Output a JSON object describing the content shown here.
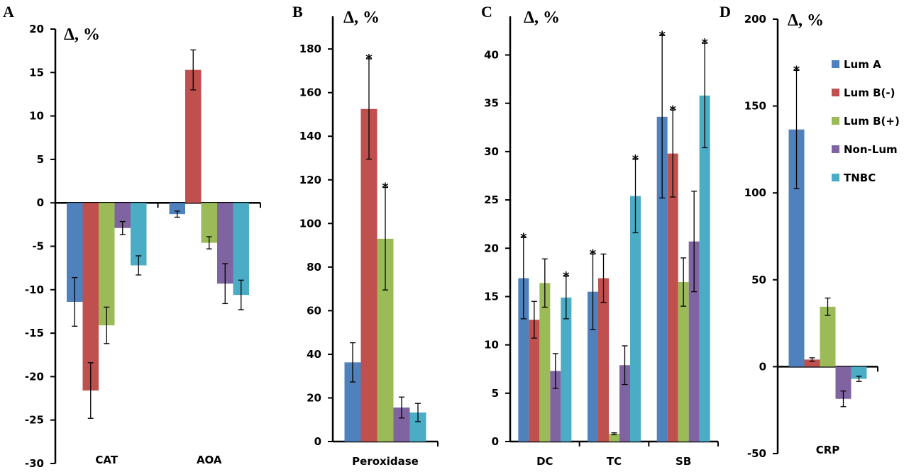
{
  "legend": [
    {
      "name": "Lum A",
      "color": "#4F81BD"
    },
    {
      "name": "Lum B(-)",
      "color": "#C0504D"
    },
    {
      "name": "Lum B(+)",
      "color": "#9BBB59"
    },
    {
      "name": "Non-Lum",
      "color": "#8064A2"
    },
    {
      "name": "TNBC",
      "color": "#4BACC6"
    }
  ],
  "chart_data": [
    {
      "type": "bar",
      "panel": "A",
      "ylabel": "Δ, %",
      "ylim": [
        -30,
        20
      ],
      "yticks": [
        20,
        15,
        10,
        5,
        0,
        -5,
        -10,
        -15,
        -20,
        -25,
        -30
      ],
      "categories": [
        "CAT",
        "AOA"
      ],
      "series": [
        {
          "name": "Lum A",
          "values": [
            -11.4,
            -1.3
          ],
          "errors": [
            2.8,
            0.35
          ],
          "significant": [
            false,
            false
          ]
        },
        {
          "name": "Lum B(-)",
          "values": [
            -21.6,
            15.3
          ],
          "errors": [
            3.2,
            2.3
          ],
          "significant": [
            false,
            false
          ]
        },
        {
          "name": "Lum B(+)",
          "values": [
            -14.1,
            -4.6
          ],
          "errors": [
            2.1,
            0.7
          ],
          "significant": [
            false,
            false
          ]
        },
        {
          "name": "Non-Lum",
          "values": [
            -2.9,
            -9.3
          ],
          "errors": [
            0.75,
            2.3
          ],
          "significant": [
            false,
            false
          ]
        },
        {
          "name": "TNBC",
          "values": [
            -7.2,
            -10.6
          ],
          "errors": [
            1.1,
            1.7
          ],
          "significant": [
            false,
            false
          ]
        }
      ]
    },
    {
      "type": "bar",
      "panel": "B",
      "ylabel": "Δ, %",
      "ylim": [
        0,
        195
      ],
      "yticks": [
        180,
        160,
        140,
        120,
        100,
        80,
        60,
        40,
        20,
        0
      ],
      "categories": [
        "Peroxidase"
      ],
      "series": [
        {
          "name": "Lum A",
          "values": [
            36.3
          ],
          "errors": [
            9.0
          ],
          "significant": [
            false
          ]
        },
        {
          "name": "Lum B(-)",
          "values": [
            152.5
          ],
          "errors": [
            23.0
          ],
          "significant": [
            true
          ]
        },
        {
          "name": "Lum B(+)",
          "values": [
            93.0
          ],
          "errors": [
            23.5
          ],
          "significant": [
            true
          ]
        },
        {
          "name": "Non-Lum",
          "values": [
            15.6
          ],
          "errors": [
            4.8
          ],
          "significant": [
            false
          ]
        },
        {
          "name": "TNBC",
          "values": [
            13.3
          ],
          "errors": [
            4.2
          ],
          "significant": [
            false
          ]
        }
      ]
    },
    {
      "type": "bar",
      "panel": "C",
      "ylabel": "Δ, %",
      "ylim": [
        0,
        44
      ],
      "yticks": [
        40,
        35,
        30,
        25,
        20,
        15,
        10,
        5,
        0
      ],
      "categories": [
        "DC",
        "TC",
        "SB"
      ],
      "series": [
        {
          "name": "Lum A",
          "values": [
            16.9,
            15.5,
            33.6
          ],
          "errors": [
            4.2,
            3.9,
            8.4
          ],
          "significant": [
            true,
            true,
            true
          ]
        },
        {
          "name": "Lum B(-)",
          "values": [
            12.6,
            16.9,
            29.8
          ],
          "errors": [
            1.9,
            2.5,
            4.5
          ],
          "significant": [
            false,
            false,
            true
          ]
        },
        {
          "name": "Lum B(+)",
          "values": [
            16.4,
            0.8,
            16.5
          ],
          "errors": [
            2.5,
            0.1,
            2.5
          ],
          "significant": [
            false,
            false,
            false
          ]
        },
        {
          "name": "Non-Lum",
          "values": [
            7.3,
            7.9,
            20.7
          ],
          "errors": [
            1.8,
            2.0,
            5.2
          ],
          "significant": [
            false,
            false,
            false
          ]
        },
        {
          "name": "TNBC",
          "values": [
            14.9,
            25.4,
            35.8
          ],
          "errors": [
            2.2,
            3.8,
            5.4
          ],
          "significant": [
            true,
            true,
            true
          ]
        }
      ]
    },
    {
      "type": "bar",
      "panel": "D",
      "ylabel": "Δ, %",
      "ylim": [
        -50,
        200
      ],
      "yticks": [
        200,
        150,
        100,
        50,
        0,
        -50
      ],
      "categories": [
        "CRP"
      ],
      "series": [
        {
          "name": "Lum A",
          "values": [
            136.5
          ],
          "errors": [
            34.0
          ],
          "significant": [
            true
          ]
        },
        {
          "name": "Lum B(-)",
          "values": [
            4.1
          ],
          "errors": [
            1.0
          ],
          "significant": [
            false
          ]
        },
        {
          "name": "Lum B(+)",
          "values": [
            34.5
          ],
          "errors": [
            5.0
          ],
          "significant": [
            false
          ]
        },
        {
          "name": "Non-Lum",
          "values": [
            -18.5
          ],
          "errors": [
            4.5
          ],
          "significant": [
            false
          ]
        },
        {
          "name": "TNBC",
          "values": [
            -7.0
          ],
          "errors": [
            1.5
          ],
          "significant": [
            false
          ]
        }
      ]
    }
  ],
  "significance_marker": "*"
}
